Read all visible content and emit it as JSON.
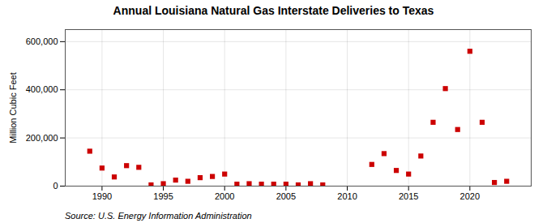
{
  "chart_data": {
    "type": "scatter",
    "title": "Annual Louisiana Natural Gas Interstate Deliveries to Texas",
    "ylabel": "Million Cubic Feet",
    "source": "Source: U.S. Energy Information Administration",
    "x": [
      1989,
      1990,
      1991,
      1992,
      1993,
      1994,
      1995,
      1996,
      1997,
      1998,
      1999,
      2000,
      2001,
      2002,
      2003,
      2004,
      2005,
      2006,
      2007,
      2008,
      2012,
      2013,
      2014,
      2015,
      2016,
      2017,
      2018,
      2019,
      2020,
      2021,
      2022,
      2023
    ],
    "values": [
      145000,
      75000,
      38000,
      85000,
      78000,
      5000,
      10000,
      25000,
      20000,
      35000,
      40000,
      50000,
      8000,
      10000,
      8000,
      8000,
      8000,
      5000,
      10000,
      5000,
      90000,
      135000,
      65000,
      50000,
      125000,
      265000,
      405000,
      235000,
      560000,
      265000,
      15000,
      20000
    ],
    "color": "#cc0000",
    "marker": "square",
    "xlim": [
      1987,
      2025
    ],
    "xticks": [
      1990,
      1995,
      2000,
      2005,
      2010,
      2015,
      2020
    ],
    "ylim": [
      0,
      650000
    ],
    "yticks": [
      0,
      {
        "value": 200000,
        "label": "200,000"
      },
      {
        "value": 400000,
        "label": "400,000"
      },
      {
        "value": 600000,
        "label": "600,000"
      }
    ],
    "grid": true
  }
}
